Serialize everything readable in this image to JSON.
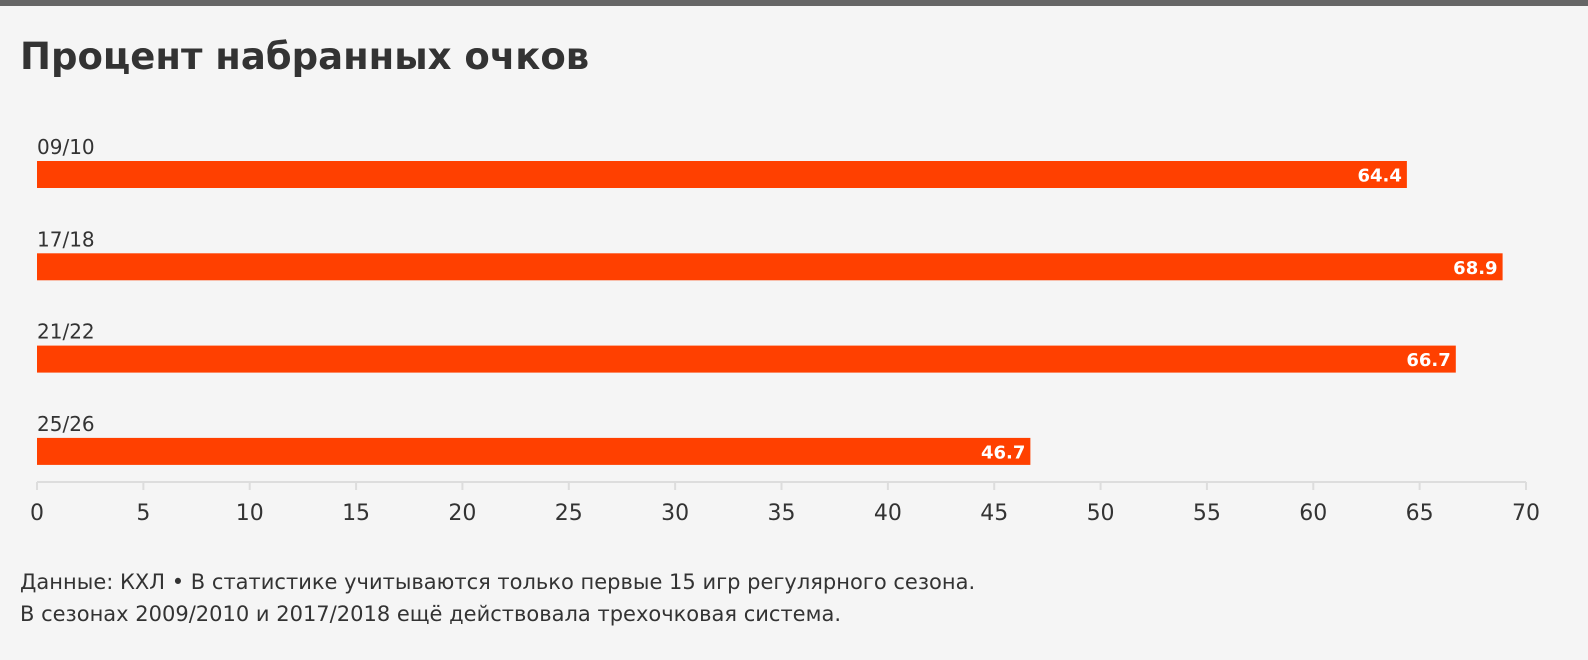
{
  "title": "Процент набранных очков",
  "footnote": {
    "line1": "Данные: КХЛ • В статистике учитываются только первые 15 игр регулярного сезона.",
    "line2": "В сезонах 2009/2010 и 2017/2018 ещё действовала трехочковая система."
  },
  "colors": {
    "bar": "#ff4000",
    "bar_label": "#ffffff",
    "text": "#333333",
    "axis": "#dddddd",
    "background": "#f5f5f5"
  },
  "chart_data": {
    "type": "bar",
    "orientation": "horizontal",
    "categories": [
      "09/10",
      "17/18",
      "21/22",
      "25/26"
    ],
    "values": [
      64.4,
      68.9,
      66.7,
      46.7
    ],
    "value_labels": [
      "64.4",
      "68.9",
      "66.7",
      "46.7"
    ],
    "xlim": [
      0,
      70
    ],
    "xticks": [
      0,
      5,
      10,
      15,
      20,
      25,
      30,
      35,
      40,
      45,
      50,
      55,
      60,
      65,
      70
    ],
    "grid": false,
    "legend": "none"
  }
}
